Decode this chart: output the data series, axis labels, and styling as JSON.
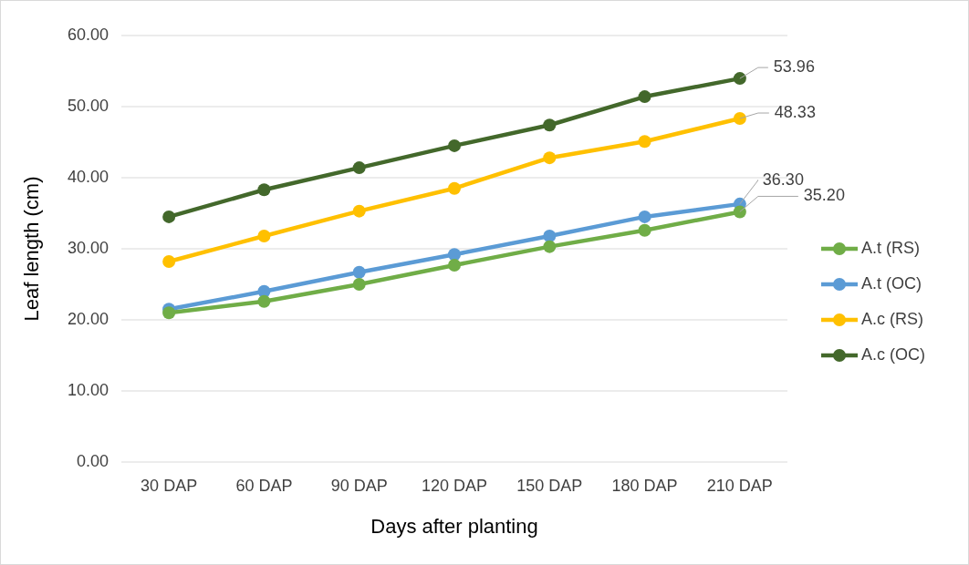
{
  "chart_data": {
    "type": "line",
    "xlabel": "Days after planting",
    "ylabel": "Leaf length (cm)",
    "categories": [
      "30 DAP",
      "60 DAP",
      "90 DAP",
      "120 DAP",
      "150 DAP",
      "180 DAP",
      "210 DAP"
    ],
    "ylim": [
      0,
      60
    ],
    "yticks": [
      {
        "value": 0,
        "label": "0.00"
      },
      {
        "value": 10,
        "label": "10.00"
      },
      {
        "value": 20,
        "label": "20.00"
      },
      {
        "value": 30,
        "label": "30.00"
      },
      {
        "value": 40,
        "label": "40.00"
      },
      {
        "value": 50,
        "label": "50.00"
      },
      {
        "value": 60,
        "label": "60.00"
      }
    ],
    "grid": "y",
    "legend": "right",
    "marker": "circle",
    "series": [
      {
        "name": "A.t (RS)",
        "color": "#70ad47",
        "values": [
          21.0,
          22.6,
          25.0,
          27.7,
          30.3,
          32.6,
          35.2
        ],
        "value_labels": [
          null,
          null,
          null,
          null,
          null,
          null,
          "35.20"
        ]
      },
      {
        "name": "A.t (OC)",
        "color": "#5b9bd5",
        "values": [
          21.5,
          24.0,
          26.7,
          29.2,
          31.8,
          34.5,
          36.3
        ],
        "value_labels": [
          null,
          null,
          null,
          null,
          null,
          null,
          "36.30"
        ]
      },
      {
        "name": "A.c (RS)",
        "color": "#ffc000",
        "values": [
          28.2,
          31.8,
          35.3,
          38.5,
          42.8,
          45.1,
          48.33
        ],
        "value_labels": [
          null,
          null,
          null,
          null,
          null,
          null,
          "48.33"
        ]
      },
      {
        "name": "A.c (OC)",
        "color": "#43682b",
        "values": [
          34.5,
          38.3,
          41.4,
          44.5,
          47.4,
          51.4,
          53.96
        ],
        "value_labels": [
          null,
          null,
          null,
          null,
          null,
          null,
          "53.96"
        ]
      }
    ]
  }
}
